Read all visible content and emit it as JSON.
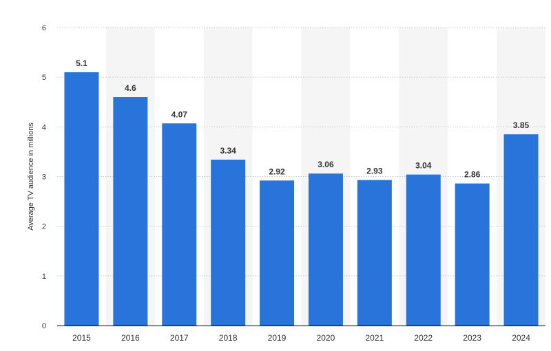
{
  "chart_data": {
    "type": "bar",
    "categories": [
      "2015",
      "2016",
      "2017",
      "2018",
      "2019",
      "2020",
      "2021",
      "2022",
      "2023",
      "2024"
    ],
    "values": [
      5.1,
      4.6,
      4.07,
      3.34,
      2.92,
      3.06,
      2.93,
      3.04,
      2.86,
      3.85
    ],
    "value_labels": [
      "5.1",
      "4.6",
      "4.07",
      "3.34",
      "2.92",
      "3.06",
      "2.93",
      "3.04",
      "2.86",
      "3.85"
    ],
    "title": "",
    "xlabel": "",
    "ylabel": "Average TV audience in millions",
    "ylim": [
      0,
      6
    ],
    "yticks": [
      0,
      1,
      2,
      3,
      4,
      5,
      6
    ],
    "grid": true,
    "alternating_column_bands": true,
    "colors": {
      "bar": "#2874DB",
      "band": "#F5F5F5",
      "grid": "#C8C8C8",
      "axis": "#000000",
      "text": "#333333",
      "label": "#333333"
    }
  }
}
